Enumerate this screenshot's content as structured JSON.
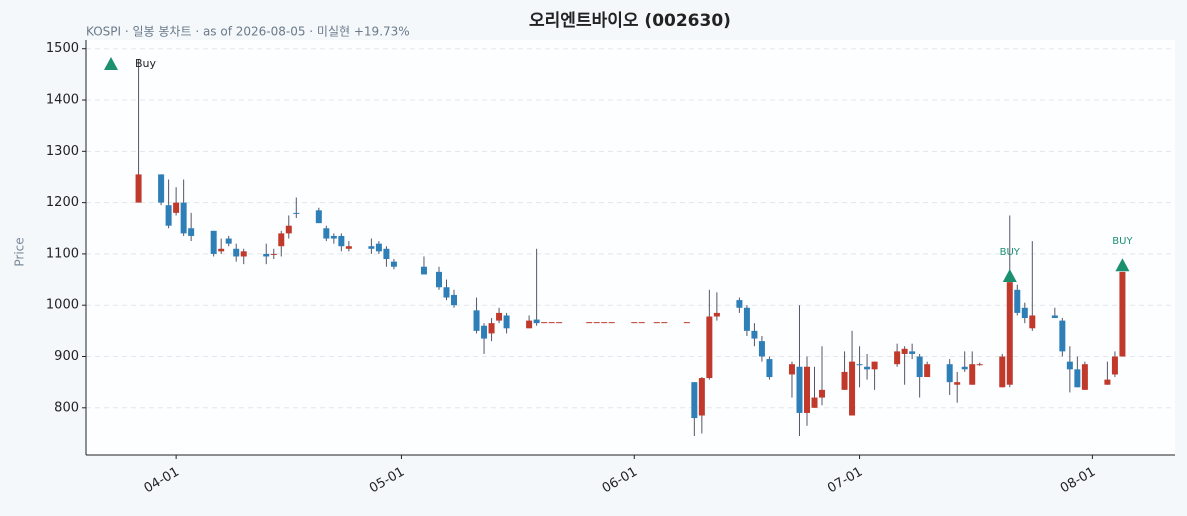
{
  "chart_data": {
    "type": "candlestick",
    "title": "오리엔트바이오 (002630)",
    "subtitle": "KOSPI · 일봉 봉차트 · as of 2026-08-05 · 미실현 +19.73%",
    "ylabel": "Price",
    "x": [
      "03-27",
      "03-30",
      "03-31",
      "04-01",
      "04-02",
      "04-03",
      "04-06",
      "04-07",
      "04-08",
      "04-09",
      "04-10",
      "04-13",
      "04-14",
      "04-15",
      "04-16",
      "04-17",
      "04-20",
      "04-21",
      "04-22",
      "04-23",
      "04-24",
      "04-27",
      "04-28",
      "04-29",
      "04-30",
      "05-04",
      "05-06",
      "05-07",
      "05-08",
      "05-11",
      "05-12",
      "05-13",
      "05-14",
      "05-15",
      "05-18",
      "05-19",
      "05-20",
      "05-21",
      "05-22",
      "05-26",
      "05-27",
      "05-28",
      "05-29",
      "06-01",
      "06-02",
      "06-04",
      "06-05",
      "06-08",
      "06-09",
      "06-10",
      "06-11",
      "06-12",
      "06-15",
      "06-16",
      "06-17",
      "06-18",
      "06-19",
      "06-22",
      "06-23",
      "06-24",
      "06-25",
      "06-26",
      "06-29",
      "06-30",
      "07-01",
      "07-02",
      "07-03",
      "07-06",
      "07-07",
      "07-08",
      "07-09",
      "07-10",
      "07-13",
      "07-14",
      "07-15",
      "07-16",
      "07-17",
      "07-20",
      "07-21",
      "07-22",
      "07-23",
      "07-24",
      "07-27",
      "07-28",
      "07-29",
      "07-30",
      "07-31",
      "08-03",
      "08-04",
      "08-05"
    ],
    "open": [
      1200,
      1255,
      1195,
      1180,
      1200,
      1150,
      1145,
      1105,
      1130,
      1110,
      1095,
      1100,
      1098,
      1115,
      1140,
      1180,
      1185,
      1150,
      1135,
      1135,
      1110,
      1115,
      1120,
      1110,
      1085,
      1075,
      1065,
      1035,
      1020,
      990,
      960,
      945,
      970,
      980,
      955,
      972,
      967,
      967,
      967,
      967,
      967,
      967,
      967,
      967,
      967,
      967,
      967,
      967,
      850,
      785,
      858,
      978,
      1010,
      995,
      950,
      930,
      895,
      865,
      880,
      790,
      800,
      820,
      835,
      785,
      885,
      880,
      875,
      885,
      905,
      910,
      900,
      860,
      885,
      845,
      880,
      845,
      885,
      840,
      845,
      1030,
      995,
      955,
      980,
      970,
      890,
      875,
      835,
      845,
      865,
      900
    ],
    "high": [
      1480,
      1255,
      1245,
      1230,
      1245,
      1180,
      1145,
      1130,
      1135,
      1120,
      1110,
      1120,
      1110,
      1145,
      1175,
      1210,
      1190,
      1155,
      1140,
      1140,
      1125,
      1130,
      1125,
      1115,
      1090,
      1095,
      1075,
      1050,
      1030,
      1015,
      965,
      975,
      995,
      985,
      980,
      1110,
      967,
      967,
      967,
      967,
      967,
      967,
      967,
      967,
      967,
      967,
      967,
      967,
      850,
      860,
      1030,
      1025,
      1015,
      1000,
      965,
      940,
      900,
      890,
      1000,
      900,
      880,
      920,
      910,
      950,
      920,
      905,
      890,
      925,
      920,
      925,
      905,
      890,
      895,
      870,
      910,
      910,
      888,
      905,
      1175,
      1040,
      1005,
      1125,
      995,
      975,
      920,
      900,
      890,
      890,
      910,
      1065
    ],
    "low": [
      1200,
      1195,
      1150,
      1175,
      1135,
      1125,
      1095,
      1100,
      1115,
      1085,
      1080,
      1080,
      1090,
      1095,
      1130,
      1170,
      1160,
      1125,
      1120,
      1105,
      1105,
      1100,
      1100,
      1075,
      1070,
      1060,
      1030,
      1010,
      995,
      945,
      905,
      930,
      965,
      945,
      955,
      960,
      967,
      967,
      967,
      967,
      967,
      967,
      967,
      967,
      967,
      967,
      967,
      967,
      745,
      750,
      855,
      970,
      985,
      940,
      920,
      890,
      855,
      820,
      745,
      765,
      800,
      805,
      835,
      785,
      840,
      855,
      835,
      880,
      845,
      895,
      820,
      860,
      825,
      810,
      870,
      845,
      882,
      840,
      840,
      980,
      965,
      950,
      975,
      900,
      830,
      840,
      835,
      845,
      860,
      900
    ],
    "close": [
      1255,
      1200,
      1155,
      1200,
      1140,
      1135,
      1100,
      1110,
      1120,
      1095,
      1105,
      1095,
      1100,
      1140,
      1155,
      1178,
      1160,
      1130,
      1130,
      1115,
      1115,
      1110,
      1105,
      1090,
      1075,
      1060,
      1035,
      1015,
      1000,
      950,
      935,
      965,
      985,
      955,
      970,
      965,
      967,
      967,
      967,
      967,
      967,
      967,
      967,
      967,
      967,
      967,
      967,
      967,
      780,
      858,
      978,
      985,
      995,
      950,
      935,
      900,
      860,
      885,
      790,
      880,
      820,
      835,
      870,
      890,
      883,
      875,
      890,
      910,
      915,
      905,
      860,
      885,
      850,
      850,
      875,
      885,
      885,
      900,
      1045,
      985,
      975,
      980,
      975,
      910,
      875,
      840,
      885,
      855,
      900,
      1065
    ],
    "up_color": "#c0392b",
    "down_color": "#2e7fb8",
    "markers": {
      "name": "Buy",
      "color": "#1a9070",
      "x": [
        "07-21",
        "08-05"
      ],
      "values": [
        1057,
        1078
      ],
      "labels": [
        "BUY",
        "BUY"
      ]
    },
    "legend": "upper left",
    "xlim": [
      "03-20",
      "08-12"
    ],
    "xticks": [
      "04-01",
      "05-01",
      "06-01",
      "07-01",
      "08-01"
    ],
    "ylim": [
      708,
      1517
    ],
    "yticks": [
      800,
      900,
      1000,
      1100,
      1200,
      1300,
      1400,
      1500
    ],
    "grid": true
  }
}
